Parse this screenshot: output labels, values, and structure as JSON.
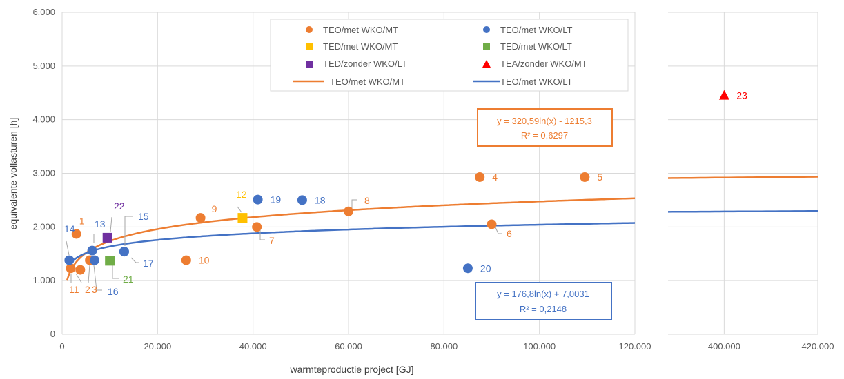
{
  "chart_data": {
    "type": "scatter",
    "xlabel": "warmteproductie project [GJ]",
    "ylabel": "equivalente vollasturen [h]",
    "y_ticks": [
      "0",
      "1.000",
      "2.000",
      "3.000",
      "4.000",
      "5.000",
      "6.000"
    ],
    "x_ticks_left": [
      "0",
      "20.000",
      "40.000",
      "60.000",
      "80.000",
      "100.000",
      "120.000"
    ],
    "x_ticks_right": [
      "400.000",
      "420.000"
    ],
    "xlim_left": [
      0,
      120000
    ],
    "xlim_right": [
      388000,
      420000
    ],
    "ylim": [
      0,
      6000
    ],
    "axis_break": true,
    "grid": true,
    "legend_placement": "top-center",
    "colors": {
      "orange": "#ed7d31",
      "blue": "#4472c4",
      "yellow": "#ffc000",
      "green": "#70ad47",
      "purple": "#7030a0",
      "red": "#ff0000"
    },
    "series": [
      {
        "name": "TEO/met WKO/MT",
        "marker": "circle",
        "color": "#ed7d31",
        "points": [
          {
            "label": "1",
            "x": 3000,
            "y": 1870
          },
          {
            "label": "2",
            "x": 1800,
            "y": 1230
          },
          {
            "label": "3",
            "x": 3800,
            "y": 1200
          },
          {
            "label": "4",
            "x": 87500,
            "y": 2930
          },
          {
            "label": "5",
            "x": 109500,
            "y": 2930
          },
          {
            "label": "6",
            "x": 90000,
            "y": 2050
          },
          {
            "label": "7",
            "x": 40800,
            "y": 2000
          },
          {
            "label": "8",
            "x": 60000,
            "y": 2290
          },
          {
            "label": "9",
            "x": 29000,
            "y": 2170
          },
          {
            "label": "10",
            "x": 26000,
            "y": 1380
          },
          {
            "label": "11",
            "x": 5800,
            "y": 1380
          }
        ]
      },
      {
        "name": "TEO/met WKO/LT",
        "marker": "circle",
        "color": "#4472c4",
        "points": [
          {
            "label": "13",
            "x": 6300,
            "y": 1560
          },
          {
            "label": "14",
            "x": 1500,
            "y": 1380
          },
          {
            "label": "15",
            "x": 13000,
            "y": 1540
          },
          {
            "label": "16",
            "x": 6800,
            "y": 1380
          },
          {
            "label": "17",
            "x": 13000,
            "y": 1540
          },
          {
            "label": "18",
            "x": 50300,
            "y": 2500
          },
          {
            "label": "19",
            "x": 41000,
            "y": 2510
          },
          {
            "label": "20",
            "x": 85000,
            "y": 1230
          }
        ]
      },
      {
        "name": "TED/met WKO/MT",
        "marker": "square",
        "color": "#ffc000",
        "points": [
          {
            "label": "12",
            "x": 37800,
            "y": 2170
          }
        ]
      },
      {
        "name": "TED/met WKO/LT",
        "marker": "square",
        "color": "#70ad47",
        "points": [
          {
            "label": "21",
            "x": 10000,
            "y": 1370
          }
        ]
      },
      {
        "name": "TED/zonder WKO/LT",
        "marker": "square",
        "color": "#7030a0",
        "points": [
          {
            "label": "22",
            "x": 9500,
            "y": 1800
          }
        ]
      },
      {
        "name": "TEA/zonder WKO/MT",
        "marker": "triangle",
        "color": "#ff0000",
        "points": [
          {
            "label": "23",
            "x": 400000,
            "y": 4450
          }
        ]
      }
    ],
    "trendlines": [
      {
        "name": "TEO/met WKO/MT",
        "color": "#ed7d31",
        "a": 320.59,
        "b": -1215.3,
        "equation": "y = 320,59ln(x) - 1215,3",
        "r2": "R² = 0,6297"
      },
      {
        "name": "TEO/met WKO/LT",
        "color": "#4472c4",
        "a": 176.8,
        "b": 7.0031,
        "equation": "y = 176,8ln(x) + 7,0031",
        "r2": "R² = 0,2148"
      }
    ]
  }
}
